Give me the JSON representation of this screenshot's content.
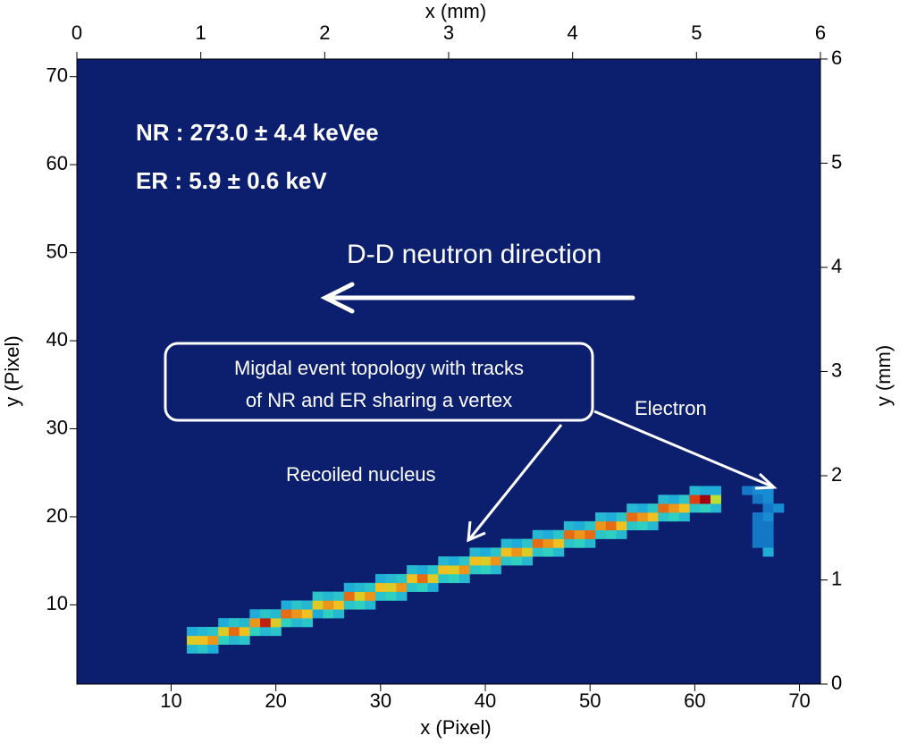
{
  "chart_data": {
    "type": "heatmap",
    "xlabel": "x (Pixel)",
    "ylabel": "y (Pixel)",
    "x2label": "x (mm)",
    "y2label": "y (mm)",
    "xlim": [
      1,
      72
    ],
    "ylim": [
      1,
      72
    ],
    "x2lim": [
      0,
      6
    ],
    "y2lim": [
      0,
      6
    ],
    "xticks": [
      10,
      20,
      30,
      40,
      50,
      60,
      70
    ],
    "yticks": [
      10,
      20,
      30,
      40,
      50,
      60,
      70
    ],
    "x2ticks": [
      0,
      1,
      2,
      3,
      4,
      5,
      6
    ],
    "y2ticks": [
      0,
      1,
      2,
      3,
      4,
      5,
      6
    ],
    "background": "#0b1f6e",
    "colorscale": [
      [
        0,
        "#0a3c9e"
      ],
      [
        0.25,
        "#1aa0e0"
      ],
      [
        0.45,
        "#30d0c0"
      ],
      [
        0.6,
        "#b8e030"
      ],
      [
        0.75,
        "#f0c020"
      ],
      [
        0.9,
        "#e04010"
      ],
      [
        1,
        "#a00010"
      ]
    ],
    "annotations": {
      "nr": "NR : 273.0 ± 4.4 keVee",
      "er": "ER : 5.9 ± 0.6 keV",
      "direction": "D-D neutron direction",
      "callout": [
        "Migdal event topology with tracks",
        "of NR and ER sharing a vertex"
      ],
      "electron": "Electron",
      "nucleus": "Recoiled nucleus"
    },
    "cells": [
      [
        12,
        5,
        0.35
      ],
      [
        12,
        6,
        0.7
      ],
      [
        12,
        7,
        0.3
      ],
      [
        13,
        5,
        0.4
      ],
      [
        13,
        6,
        0.75
      ],
      [
        13,
        7,
        0.35
      ],
      [
        14,
        5,
        0.3
      ],
      [
        14,
        6,
        0.8
      ],
      [
        14,
        7,
        0.4
      ],
      [
        15,
        6,
        0.45
      ],
      [
        15,
        7,
        0.7
      ],
      [
        15,
        8,
        0.3
      ],
      [
        16,
        6,
        0.35
      ],
      [
        16,
        7,
        0.85
      ],
      [
        16,
        8,
        0.4
      ],
      [
        17,
        6,
        0.4
      ],
      [
        17,
        7,
        0.75
      ],
      [
        17,
        8,
        0.35
      ],
      [
        18,
        7,
        0.45
      ],
      [
        18,
        8,
        0.8
      ],
      [
        18,
        9,
        0.3
      ],
      [
        19,
        7,
        0.35
      ],
      [
        19,
        8,
        0.95
      ],
      [
        19,
        9,
        0.4
      ],
      [
        20,
        7,
        0.4
      ],
      [
        20,
        8,
        0.7
      ],
      [
        20,
        9,
        0.35
      ],
      [
        21,
        8,
        0.45
      ],
      [
        21,
        9,
        0.85
      ],
      [
        21,
        10,
        0.3
      ],
      [
        22,
        8,
        0.35
      ],
      [
        22,
        9,
        0.8
      ],
      [
        22,
        10,
        0.4
      ],
      [
        23,
        8,
        0.4
      ],
      [
        23,
        9,
        0.75
      ],
      [
        23,
        10,
        0.35
      ],
      [
        24,
        9,
        0.3
      ],
      [
        24,
        10,
        0.7
      ],
      [
        24,
        11,
        0.4
      ],
      [
        25,
        9,
        0.45
      ],
      [
        25,
        10,
        0.8
      ],
      [
        25,
        11,
        0.35
      ],
      [
        26,
        9,
        0.35
      ],
      [
        26,
        10,
        0.75
      ],
      [
        26,
        11,
        0.4
      ],
      [
        27,
        10,
        0.4
      ],
      [
        27,
        11,
        0.85
      ],
      [
        27,
        12,
        0.3
      ],
      [
        28,
        10,
        0.45
      ],
      [
        28,
        11,
        0.7
      ],
      [
        28,
        12,
        0.35
      ],
      [
        29,
        10,
        0.35
      ],
      [
        29,
        11,
        0.8
      ],
      [
        29,
        12,
        0.4
      ],
      [
        30,
        11,
        0.4
      ],
      [
        30,
        12,
        0.75
      ],
      [
        30,
        13,
        0.3
      ],
      [
        31,
        11,
        0.45
      ],
      [
        31,
        12,
        0.7
      ],
      [
        31,
        13,
        0.35
      ],
      [
        32,
        11,
        0.35
      ],
      [
        32,
        12,
        0.8
      ],
      [
        32,
        13,
        0.4
      ],
      [
        33,
        12,
        0.4
      ],
      [
        33,
        13,
        0.75
      ],
      [
        33,
        14,
        0.35
      ],
      [
        34,
        12,
        0.45
      ],
      [
        34,
        13,
        0.85
      ],
      [
        34,
        14,
        0.3
      ],
      [
        35,
        12,
        0.3
      ],
      [
        35,
        13,
        0.7
      ],
      [
        35,
        14,
        0.4
      ],
      [
        36,
        13,
        0.4
      ],
      [
        36,
        14,
        0.75
      ],
      [
        36,
        15,
        0.35
      ],
      [
        37,
        13,
        0.45
      ],
      [
        37,
        14,
        0.7
      ],
      [
        37,
        15,
        0.3
      ],
      [
        38,
        13,
        0.35
      ],
      [
        38,
        14,
        0.8
      ],
      [
        38,
        15,
        0.4
      ],
      [
        39,
        14,
        0.4
      ],
      [
        39,
        15,
        0.75
      ],
      [
        39,
        16,
        0.35
      ],
      [
        40,
        14,
        0.45
      ],
      [
        40,
        15,
        0.7
      ],
      [
        40,
        16,
        0.3
      ],
      [
        41,
        14,
        0.35
      ],
      [
        41,
        15,
        0.8
      ],
      [
        41,
        16,
        0.4
      ],
      [
        42,
        15,
        0.4
      ],
      [
        42,
        16,
        0.75
      ],
      [
        42,
        17,
        0.35
      ],
      [
        43,
        15,
        0.45
      ],
      [
        43,
        16,
        0.8
      ],
      [
        43,
        17,
        0.3
      ],
      [
        44,
        15,
        0.35
      ],
      [
        44,
        16,
        0.7
      ],
      [
        44,
        17,
        0.4
      ],
      [
        45,
        16,
        0.4
      ],
      [
        45,
        17,
        0.85
      ],
      [
        45,
        18,
        0.35
      ],
      [
        46,
        16,
        0.45
      ],
      [
        46,
        17,
        0.8
      ],
      [
        46,
        18,
        0.3
      ],
      [
        47,
        16,
        0.35
      ],
      [
        47,
        17,
        0.75
      ],
      [
        47,
        18,
        0.4
      ],
      [
        48,
        17,
        0.4
      ],
      [
        48,
        18,
        0.85
      ],
      [
        48,
        19,
        0.35
      ],
      [
        49,
        17,
        0.45
      ],
      [
        49,
        18,
        0.8
      ],
      [
        49,
        19,
        0.3
      ],
      [
        50,
        17,
        0.35
      ],
      [
        50,
        18,
        0.85
      ],
      [
        50,
        19,
        0.4
      ],
      [
        51,
        18,
        0.4
      ],
      [
        51,
        19,
        0.8
      ],
      [
        51,
        20,
        0.35
      ],
      [
        52,
        18,
        0.45
      ],
      [
        52,
        19,
        0.85
      ],
      [
        52,
        20,
        0.3
      ],
      [
        53,
        18,
        0.35
      ],
      [
        53,
        19,
        0.75
      ],
      [
        53,
        20,
        0.4
      ],
      [
        54,
        19,
        0.4
      ],
      [
        54,
        20,
        0.85
      ],
      [
        54,
        21,
        0.35
      ],
      [
        55,
        19,
        0.45
      ],
      [
        55,
        20,
        0.8
      ],
      [
        55,
        21,
        0.3
      ],
      [
        56,
        19,
        0.35
      ],
      [
        56,
        20,
        0.75
      ],
      [
        56,
        21,
        0.4
      ],
      [
        57,
        20,
        0.4
      ],
      [
        57,
        21,
        0.85
      ],
      [
        57,
        22,
        0.35
      ],
      [
        58,
        20,
        0.45
      ],
      [
        58,
        21,
        0.8
      ],
      [
        58,
        22,
        0.3
      ],
      [
        59,
        20,
        0.35
      ],
      [
        59,
        21,
        0.75
      ],
      [
        59,
        22,
        0.4
      ],
      [
        60,
        21,
        0.4
      ],
      [
        60,
        22,
        0.9
      ],
      [
        60,
        23,
        0.35
      ],
      [
        61,
        21,
        0.45
      ],
      [
        61,
        22,
        1.0
      ],
      [
        61,
        23,
        0.3
      ],
      [
        62,
        21,
        0.35
      ],
      [
        62,
        22,
        0.6
      ],
      [
        62,
        23,
        0.3
      ],
      [
        65,
        23,
        0.15
      ],
      [
        66,
        23,
        0.2
      ],
      [
        67,
        23,
        0.2
      ],
      [
        66,
        22,
        0.15
      ],
      [
        67,
        22,
        0.2
      ],
      [
        67,
        21,
        0.15
      ],
      [
        68,
        21,
        0.2
      ],
      [
        66,
        20,
        0.15
      ],
      [
        67,
        20,
        0.2
      ],
      [
        66,
        19,
        0.15
      ],
      [
        67,
        19,
        0.15
      ],
      [
        66,
        18,
        0.15
      ],
      [
        67,
        18,
        0.15
      ],
      [
        66,
        17,
        0.15
      ],
      [
        67,
        17,
        0.15
      ],
      [
        67,
        16,
        0.3
      ]
    ]
  }
}
